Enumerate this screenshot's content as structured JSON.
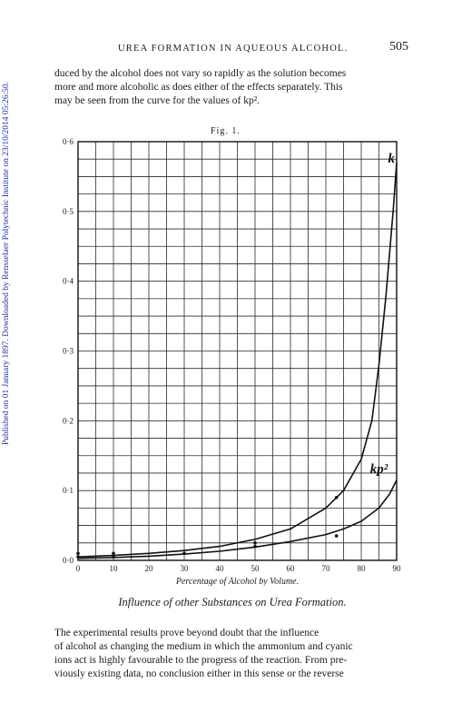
{
  "side_stamp": "Published on 01 January 1897. Downloaded by Rensselaer Polytechnic Institute on 23/10/2014 05:26:50.",
  "running_head": {
    "title": "UREA FORMATION IN AQUEOUS ALCOHOL.",
    "page_number": "505"
  },
  "paragraph_top": [
    "duced by the alcohol does not vary so rapidly as the solution becomes",
    "more and more alcoholic as does either of the effects separately. This",
    "may be seen from the curve for the values of kp²."
  ],
  "figure_label": "Fig. 1.",
  "chart_data": {
    "type": "line",
    "title": "",
    "xlabel": "Percentage of Alcohol by Volume.",
    "ylabel": "",
    "xlim": [
      0,
      90
    ],
    "ylim": [
      0,
      0.6
    ],
    "x_ticks": [
      "0",
      "10",
      "20",
      "30",
      "40",
      "50",
      "60",
      "70",
      "80",
      "90"
    ],
    "y_ticks": [
      "0·0",
      "0·1",
      "0·2",
      "0·3",
      "0·4",
      "0·5",
      "0·6"
    ],
    "grid": true,
    "series": [
      {
        "name": "k",
        "x": [
          0,
          10,
          20,
          30,
          40,
          50,
          60,
          70,
          75,
          80,
          83,
          85,
          87,
          89,
          90
        ],
        "y": [
          0.005,
          0.007,
          0.01,
          0.014,
          0.02,
          0.03,
          0.045,
          0.075,
          0.1,
          0.145,
          0.2,
          0.28,
          0.38,
          0.5,
          0.57
        ]
      },
      {
        "name": "kp²",
        "x": [
          0,
          10,
          20,
          30,
          40,
          50,
          60,
          70,
          75,
          80,
          85,
          88,
          90
        ],
        "y": [
          0.003,
          0.004,
          0.006,
          0.009,
          0.013,
          0.019,
          0.027,
          0.037,
          0.045,
          0.056,
          0.075,
          0.095,
          0.115
        ]
      }
    ],
    "points": [
      {
        "x": 0,
        "y": 0.01
      },
      {
        "x": 0,
        "y": 0.005
      },
      {
        "x": 10,
        "y": 0.01
      },
      {
        "x": 10,
        "y": 0.005
      },
      {
        "x": 30,
        "y": 0.01
      },
      {
        "x": 50,
        "y": 0.025
      },
      {
        "x": 50,
        "y": 0.02
      },
      {
        "x": 73,
        "y": 0.09
      },
      {
        "x": 73,
        "y": 0.035
      }
    ],
    "curve_labels": [
      {
        "text": "k",
        "x": 89.5,
        "y": 0.57
      },
      {
        "text": "kp²",
        "x": 87.5,
        "y": 0.125
      }
    ]
  },
  "section_heading": "Influence of other Substances on Urea Formation.",
  "paragraph_bottom": [
    "The experimental results prove beyond doubt that the influence",
    "of alcohol as changing the medium in which the ammonium and cyanic",
    "ions act is highly favourable to the progress of the reaction. From pre-",
    "viously existing data, no conclusion either in this sense or the reverse"
  ]
}
